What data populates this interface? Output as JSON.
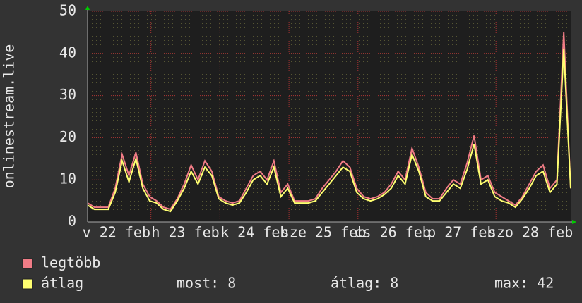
{
  "chart_data": {
    "type": "line",
    "y_label": "onlinestream.live",
    "xlabels": [
      "v 22 feb",
      "h 23 feb",
      "k 24 feb",
      "sze 25 feb",
      "cs 26 feb",
      "p 27 feb",
      "szo 28 feb"
    ],
    "ylim": [
      0,
      50
    ],
    "yticks": [
      0,
      10,
      20,
      30,
      40,
      50
    ],
    "grid": true,
    "series": [
      {
        "name": "legtöbb",
        "color": "#f07c86",
        "values": [
          4.5,
          3.5,
          3.5,
          3.5,
          8,
          16,
          11,
          16.5,
          9,
          6,
          5,
          3.5,
          3,
          5.5,
          9,
          13.5,
          10,
          14.5,
          12,
          6,
          5,
          4.5,
          5,
          8,
          11,
          12,
          10,
          14.5,
          7,
          9,
          5,
          5,
          5,
          5.5,
          8,
          10,
          12,
          14.5,
          13,
          8,
          6,
          5.5,
          6,
          7,
          9,
          12,
          10,
          17.5,
          13,
          7,
          5.5,
          5.5,
          8,
          10,
          9,
          14,
          20.5,
          10,
          11,
          7,
          6,
          5,
          4,
          6,
          9,
          12,
          13.5,
          8,
          10,
          45,
          8
        ]
      },
      {
        "name": "átlag",
        "color": "#ffff70",
        "values": [
          4,
          3,
          3,
          3,
          7,
          14.5,
          9.5,
          15,
          8,
          5,
          4.5,
          3,
          2.5,
          5,
          8,
          12,
          9,
          13,
          11,
          5.5,
          4.5,
          4,
          4.5,
          7,
          10,
          11,
          9,
          13,
          6,
          8,
          4.5,
          4.5,
          4.5,
          5,
          7,
          9,
          11,
          13,
          12,
          7,
          5.5,
          5,
          5.5,
          6.5,
          8,
          11,
          9,
          16,
          12,
          6,
          5,
          5,
          7,
          9,
          8,
          12.5,
          18.5,
          9,
          10,
          6,
          5,
          4.5,
          3.5,
          5.5,
          8,
          11,
          12,
          7,
          9,
          41,
          8
        ]
      }
    ],
    "stats": [
      "most: 8",
      "átlag: 8",
      "max: 42"
    ]
  }
}
